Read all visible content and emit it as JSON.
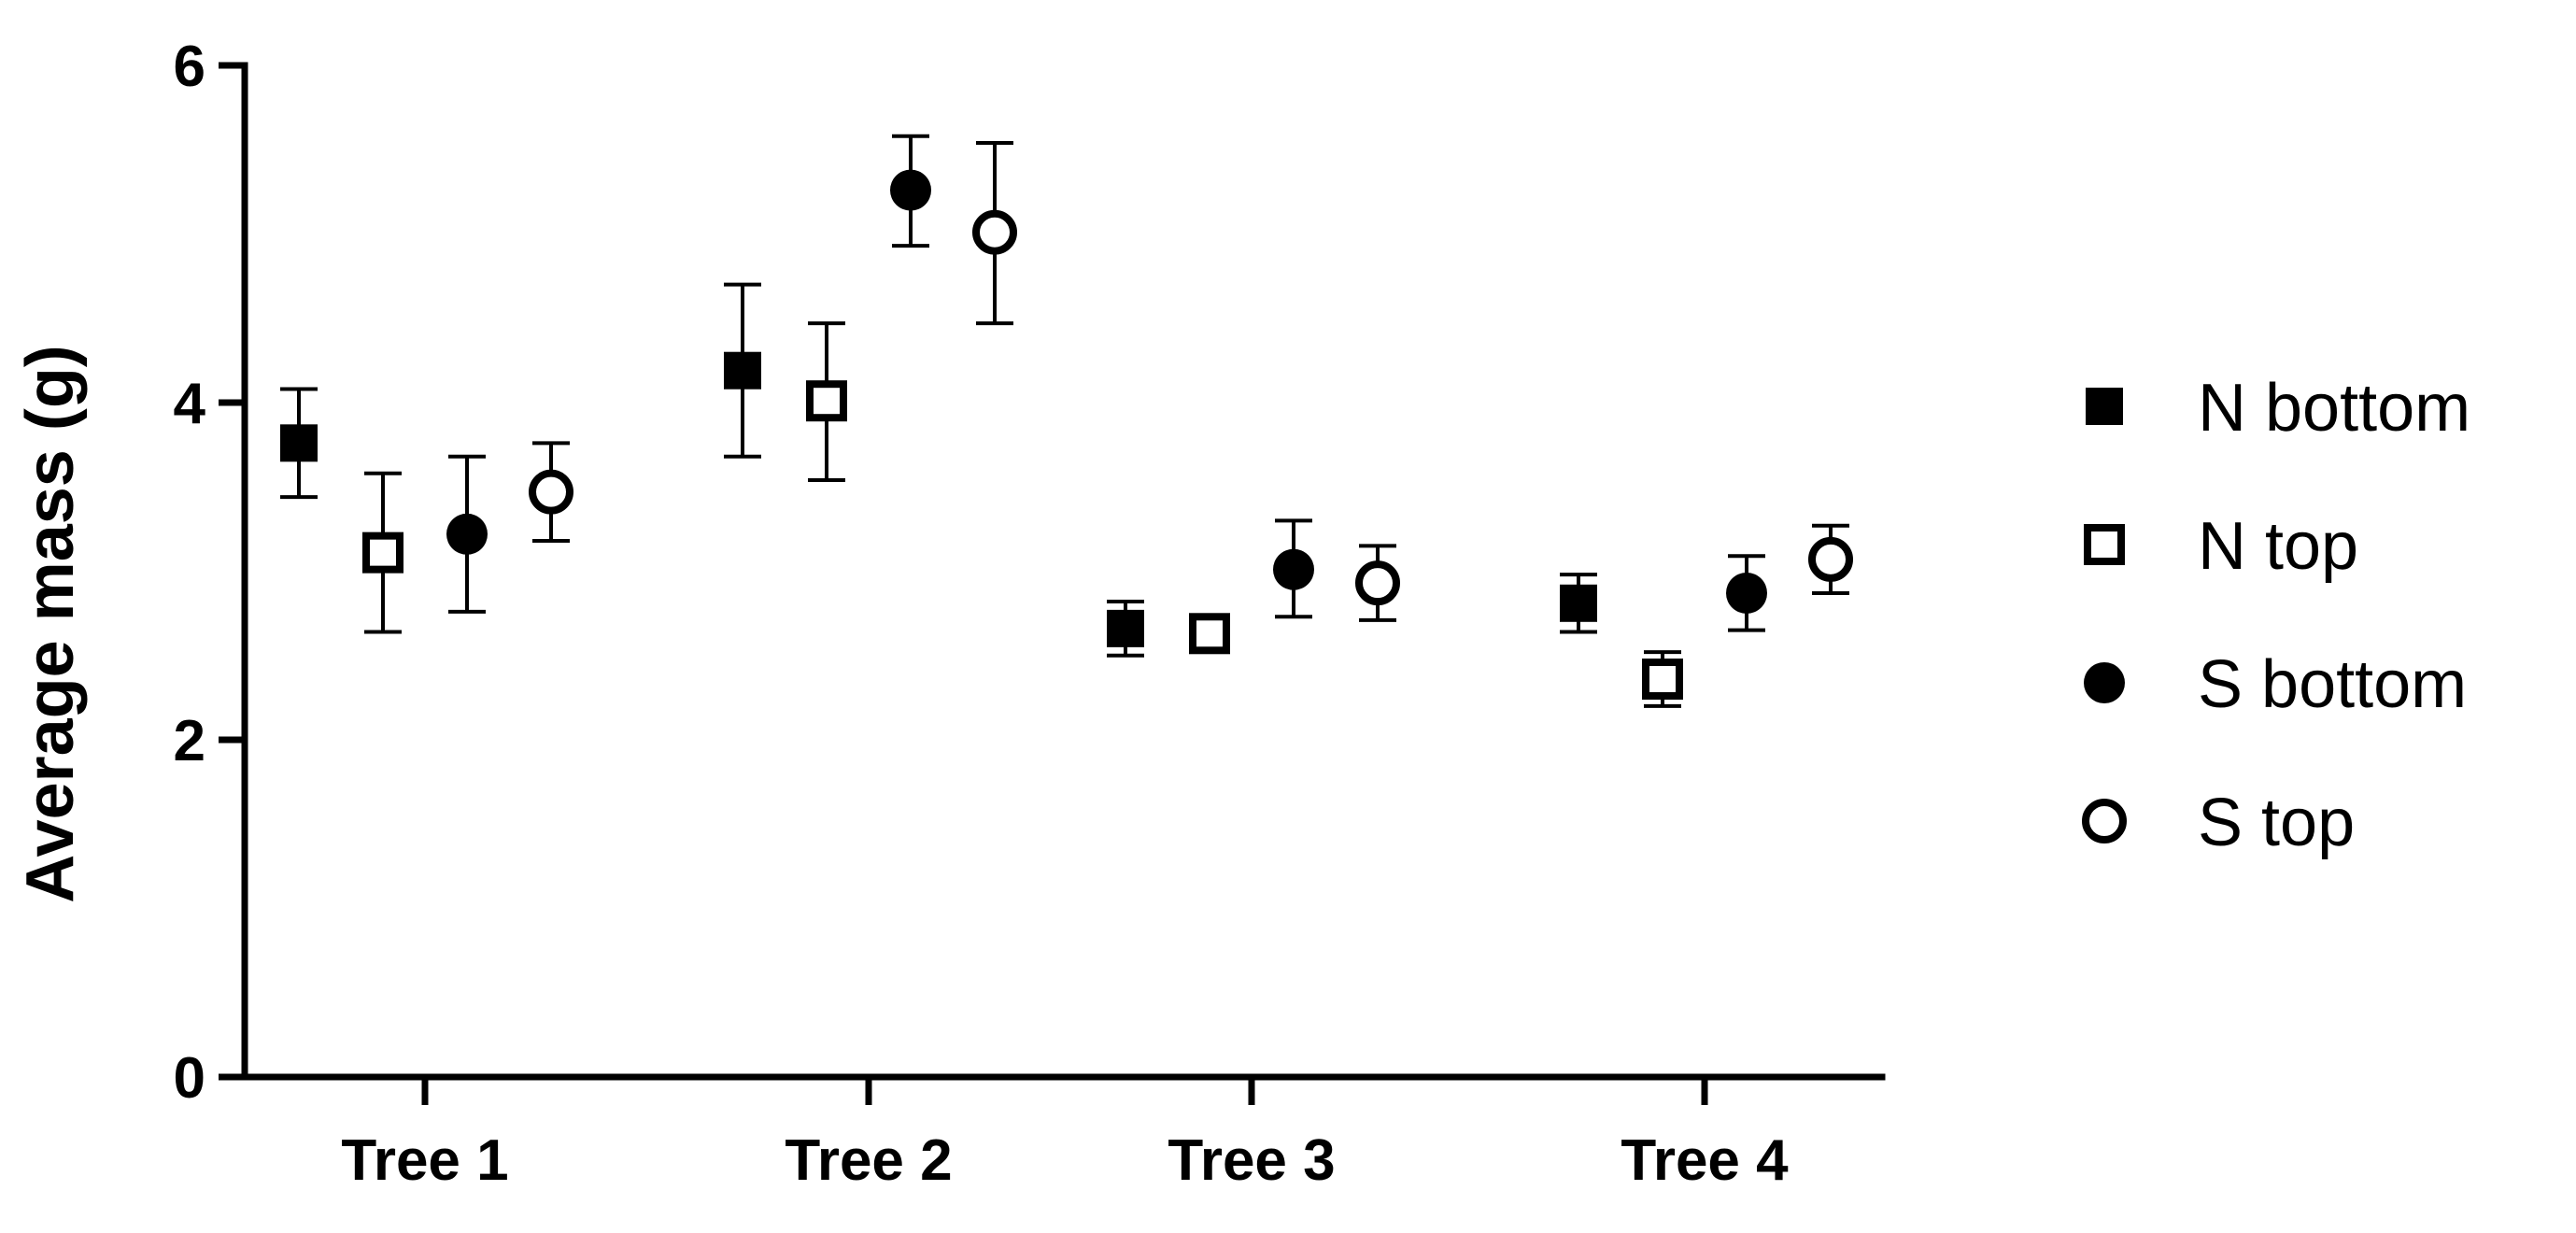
{
  "chart_data": {
    "type": "scatter",
    "categories": [
      "Tree 1",
      "Tree 2",
      "Tree 3",
      "Tree 4"
    ],
    "ylabel": "Average mass (g)",
    "xlabel": "",
    "ylim": [
      0,
      6
    ],
    "yticks": [
      0,
      2,
      4,
      6
    ],
    "grid": false,
    "legend_position": "right",
    "series": [
      {
        "name": "N bottom",
        "marker": "square-filled",
        "values": [
          3.76,
          4.19,
          2.66,
          2.81
        ],
        "err_low": [
          3.44,
          3.68,
          2.5,
          2.64
        ],
        "err_high": [
          4.08,
          4.7,
          2.82,
          2.98
        ]
      },
      {
        "name": "N top",
        "marker": "square-open",
        "values": [
          3.11,
          4.01,
          2.63,
          2.36
        ],
        "err_low": [
          2.64,
          3.54,
          2.6,
          2.2
        ],
        "err_high": [
          3.58,
          4.47,
          2.66,
          2.52
        ]
      },
      {
        "name": "S bottom",
        "marker": "circle-filled",
        "values": [
          3.22,
          5.26,
          3.01,
          2.87
        ],
        "err_low": [
          2.76,
          4.93,
          2.73,
          2.65
        ],
        "err_high": [
          3.68,
          5.58,
          3.3,
          3.09
        ]
      },
      {
        "name": "S top",
        "marker": "circle-open",
        "values": [
          3.47,
          5.01,
          2.93,
          3.07
        ],
        "err_low": [
          3.18,
          4.47,
          2.71,
          2.87
        ],
        "err_high": [
          3.76,
          5.54,
          3.15,
          3.27
        ]
      }
    ]
  }
}
